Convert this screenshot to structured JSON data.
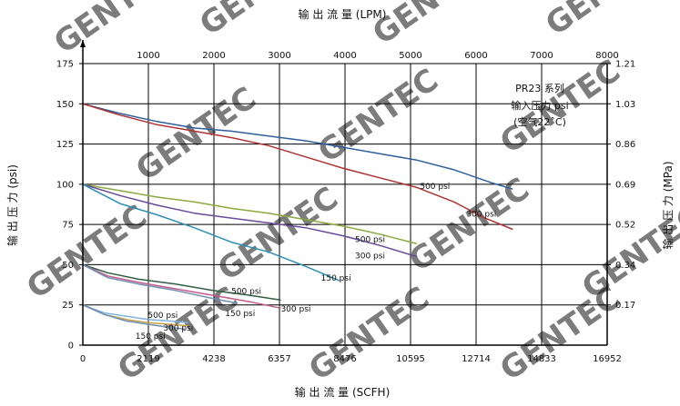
{
  "chart_data": {
    "type": "line",
    "top_axis_title": "输 出 流 量 (LPM)",
    "bottom_axis_title": "输 出 流 量 (SCFH)",
    "left_axis_title": "输 出 压 力 (psi)",
    "right_axis_title": "输 出 压 力 (MPa)",
    "x_ticks_bottom": [
      "0",
      "2119",
      "4238",
      "6357",
      "8476",
      "10595",
      "12714",
      "14833",
      "16952"
    ],
    "x_ticks_top": [
      "1000",
      "2000",
      "3000",
      "4000",
      "5000",
      "6000",
      "7000",
      "8000"
    ],
    "y_ticks_left": [
      "0",
      "25",
      "50",
      "75",
      "100",
      "125",
      "150",
      "175"
    ],
    "y_ticks_right": [
      "0.17",
      "0.34",
      "0.52",
      "0.69",
      "0.86",
      "1.03",
      "1.21"
    ],
    "xlim": [
      0,
      16952
    ],
    "ylim": [
      0,
      175
    ],
    "grid": true,
    "info_box": [
      "PR23 系列",
      "输入压力 psi",
      "(空气22˚C)"
    ],
    "watermark": "GENTEC",
    "colors": {
      "blue": "#2f5f9e",
      "red": "#b03333",
      "green": "#8aaa3e",
      "purple": "#6a4a9a",
      "cyan": "#2c8fb3",
      "dark_green": "#2f5f3f",
      "pink": "#c45c8a",
      "grey_blue": "#6f8fb3",
      "light_blue": "#7fb2dd",
      "tan": "#c8a04a",
      "grid": "#000000"
    },
    "series": [
      {
        "group": "input_150",
        "color": "blue",
        "label": "500 psi",
        "label_at": [
          10900,
          97
        ],
        "x": [
          0,
          1200,
          2400,
          3600,
          4800,
          6000,
          7200,
          8400,
          9600,
          10800,
          12000,
          13200,
          13900
        ],
        "y": [
          150,
          144,
          139,
          135,
          133,
          130,
          127,
          123,
          119,
          115,
          109,
          101,
          97
        ]
      },
      {
        "group": "input_150",
        "color": "red",
        "label": "300 psi",
        "label_at": [
          12400,
          80
        ],
        "x": [
          0,
          1200,
          2400,
          3600,
          4800,
          6000,
          7200,
          8400,
          9600,
          10800,
          12000,
          13000,
          13900
        ],
        "y": [
          150,
          143,
          137,
          133,
          129,
          124,
          117,
          110,
          104,
          98,
          89,
          79,
          72
        ]
      },
      {
        "group": "input_100",
        "color": "green",
        "label": "500 psi",
        "label_at": [
          8800,
          64
        ],
        "x": [
          0,
          1200,
          2400,
          3600,
          4800,
          6000,
          7200,
          8400,
          9600,
          10800
        ],
        "y": [
          100,
          96,
          92,
          89,
          85,
          82,
          78,
          74,
          69,
          63
        ]
      },
      {
        "group": "input_100",
        "color": "purple",
        "label": "300 psi",
        "label_at": [
          8800,
          54
        ],
        "x": [
          0,
          1200,
          2400,
          3600,
          4800,
          6000,
          7200,
          8400,
          9600,
          10800
        ],
        "y": [
          100,
          93,
          87,
          82,
          79,
          76,
          73,
          68,
          62,
          55
        ]
      },
      {
        "group": "input_100",
        "color": "cyan",
        "label": "150 psi",
        "label_at": [
          7700,
          40
        ],
        "x": [
          0,
          1200,
          2400,
          3600,
          4800,
          6000,
          7200,
          8300
        ],
        "y": [
          100,
          88,
          81,
          73,
          64,
          58,
          49,
          40
        ]
      },
      {
        "group": "input_50",
        "color": "dark_green",
        "label": "500 psi",
        "label_at": [
          4800,
          32
        ],
        "x": [
          0,
          800,
          1800,
          3000,
          4200,
          5400,
          6400
        ],
        "y": [
          50,
          45,
          41,
          38,
          34,
          31,
          28
        ]
      },
      {
        "group": "input_50",
        "color": "pink",
        "label": "300 psi",
        "label_at": [
          6400,
          21
        ],
        "x": [
          0,
          800,
          1800,
          3000,
          4200,
          5400,
          6400
        ],
        "y": [
          50,
          43,
          39,
          35,
          31,
          27,
          23
        ]
      },
      {
        "group": "input_50",
        "color": "grey_blue",
        "label": "150 psi",
        "label_at": [
          4600,
          18
        ],
        "x": [
          0,
          800,
          1800,
          3000,
          4200,
          5000
        ],
        "y": [
          50,
          42,
          38,
          34,
          29,
          26
        ]
      },
      {
        "group": "input_25",
        "color": "light_blue",
        "label": "500 psi",
        "label_at": [
          2100,
          17
        ],
        "x": [
          0,
          700,
          1400,
          2100,
          2800,
          3400
        ],
        "y": [
          25,
          20,
          18,
          16,
          15,
          14
        ]
      },
      {
        "group": "input_25",
        "color": "tan",
        "label": "300 psi",
        "label_at": [
          2600,
          9
        ],
        "x": [
          0,
          700,
          1400,
          2100,
          2800,
          3400
        ],
        "y": [
          25,
          19,
          16,
          14,
          13,
          12
        ]
      },
      {
        "group": "input_25",
        "color": "grey_blue",
        "label": "150 psi",
        "label_at": [
          1700,
          4
        ],
        "x": [
          0,
          700,
          1400,
          2100,
          2800,
          3300
        ],
        "y": [
          25,
          19,
          15,
          13,
          11,
          10
        ]
      }
    ]
  }
}
